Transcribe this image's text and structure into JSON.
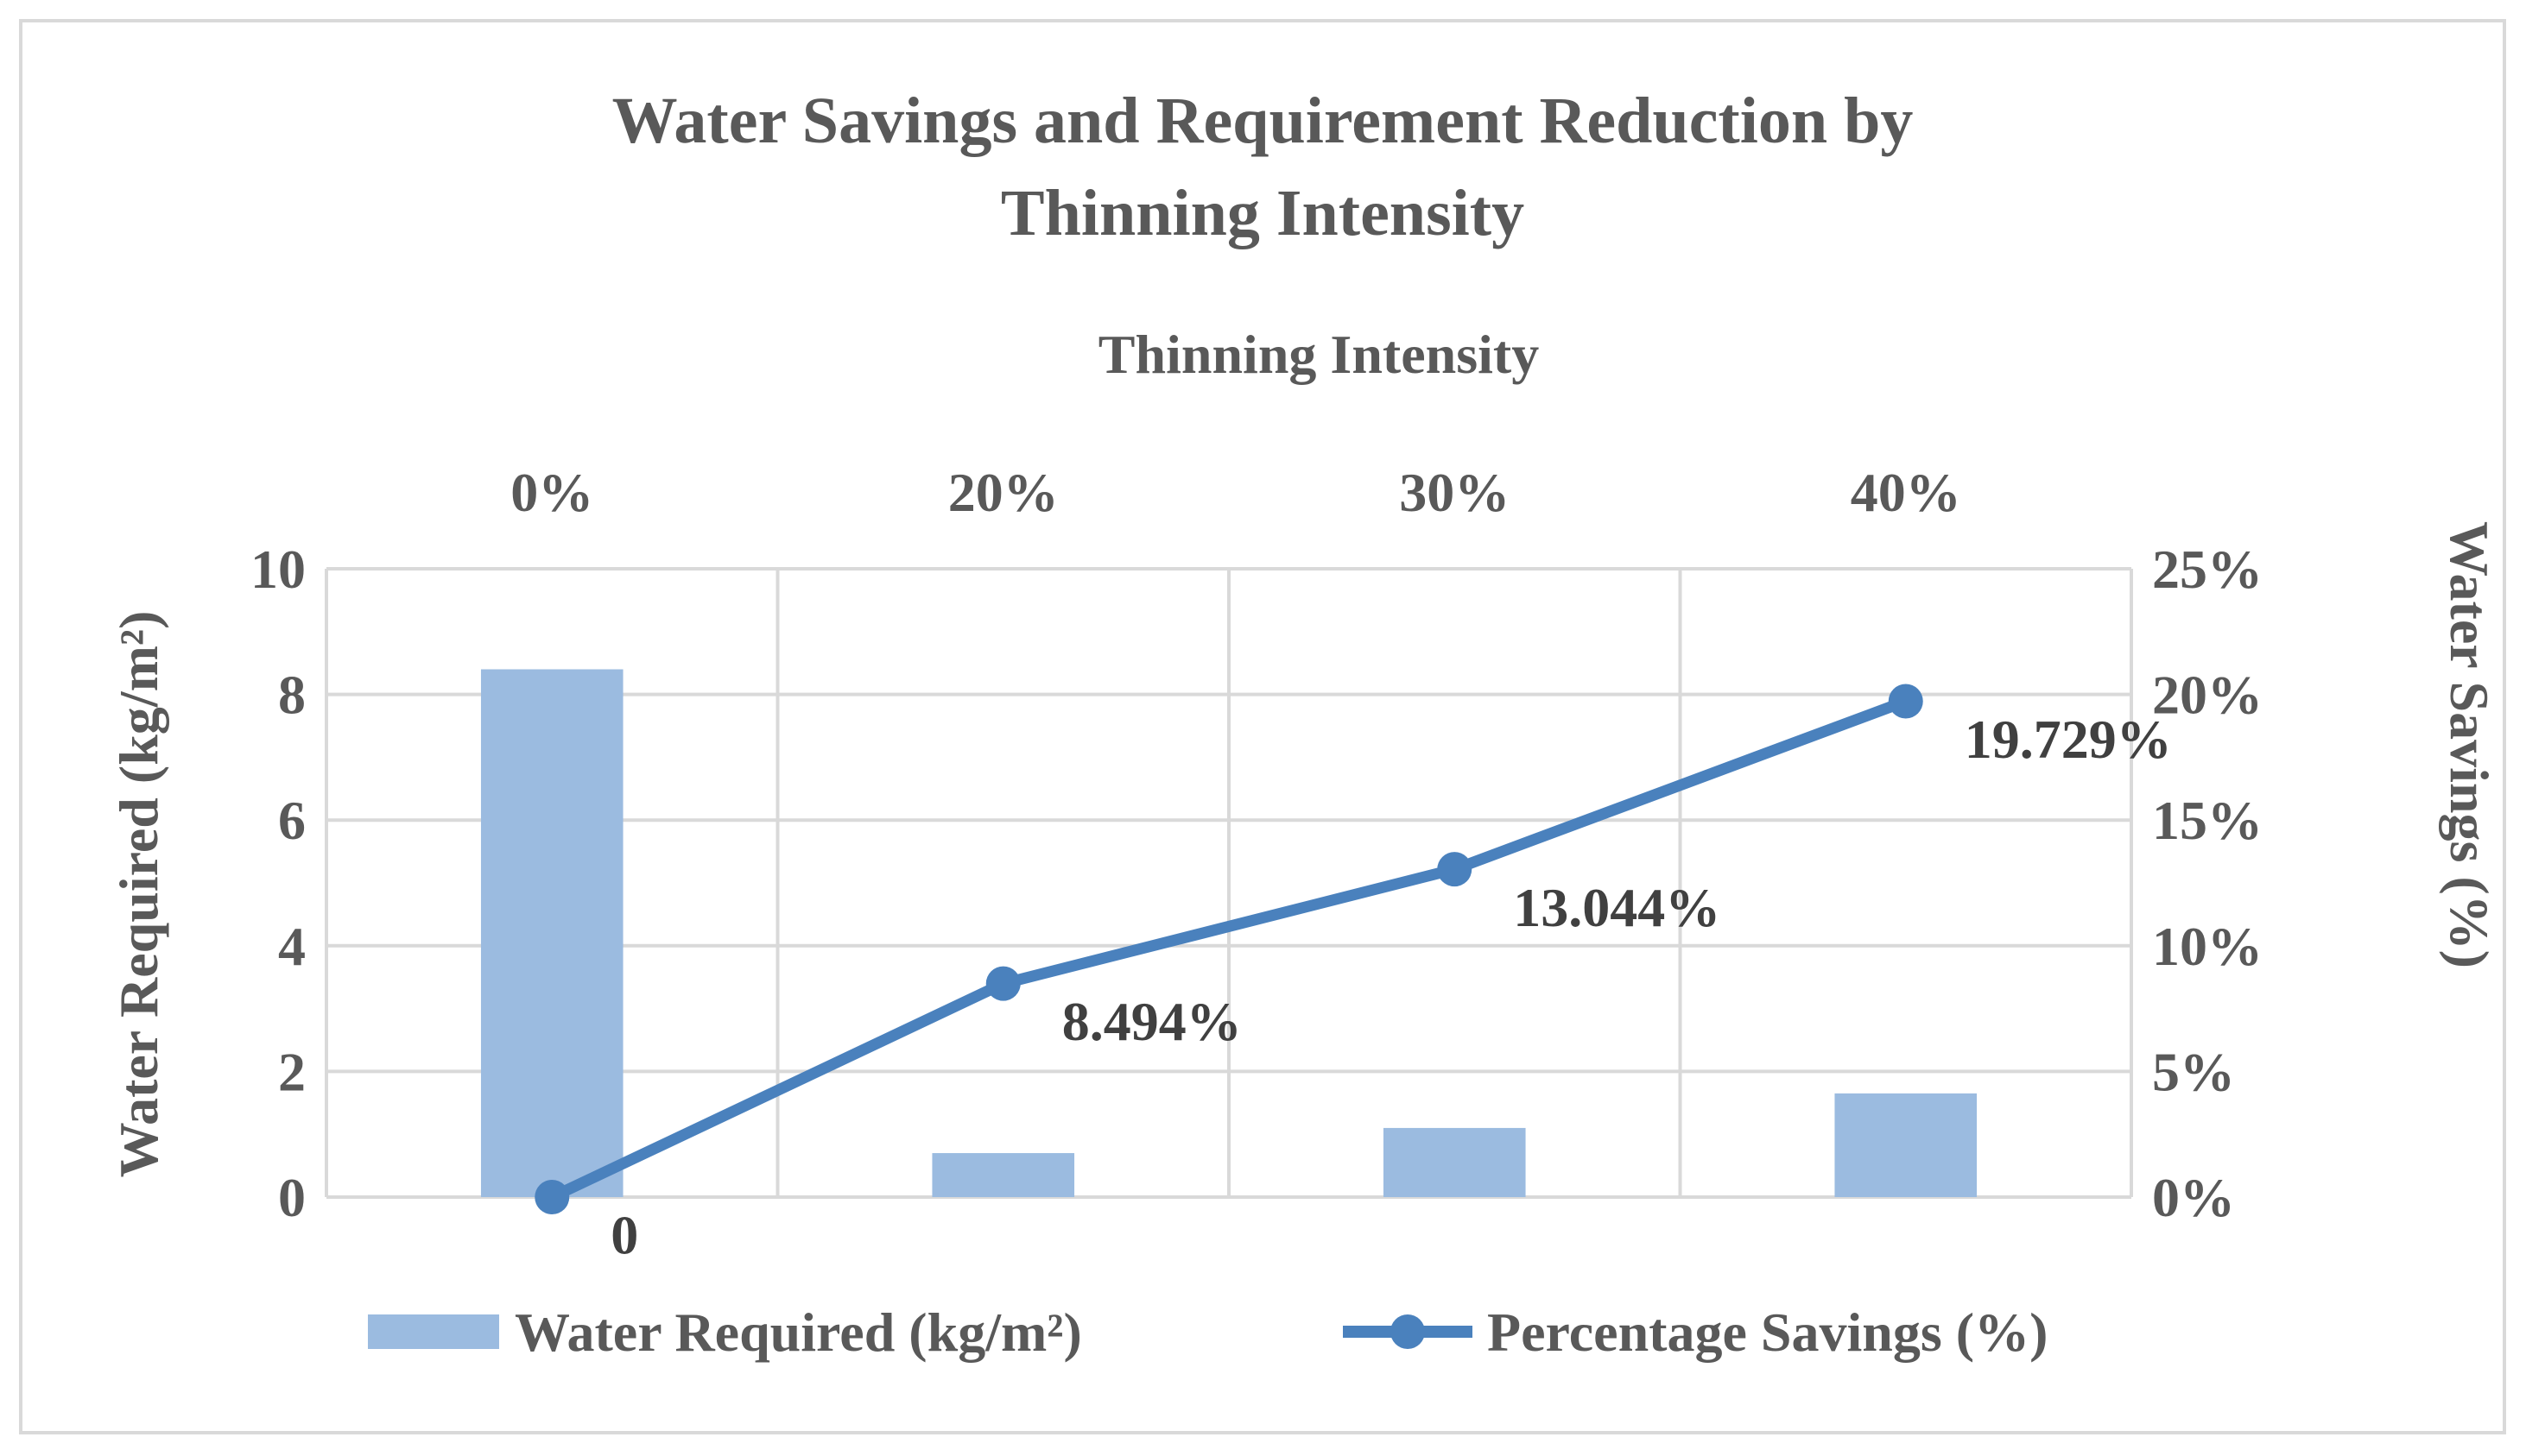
{
  "chart_data": {
    "type": "bar+line",
    "title_lines": [
      "Water Savings and Requirement Reduction by",
      "Thinning Intensity"
    ],
    "xlabel": "Thinning Intensity",
    "y_left_label": "Water Required (kg/m²)",
    "y_right_label": "Water Savings (%)",
    "categories": [
      "0%",
      "20%",
      "30%",
      "40%"
    ],
    "y_left_ticks": [
      "0",
      "2",
      "4",
      "6",
      "8",
      "10"
    ],
    "y_right_ticks": [
      "0%",
      "5%",
      "10%",
      "15%",
      "20%",
      "25%"
    ],
    "y_left_range": [
      0,
      10
    ],
    "y_right_range": [
      0,
      25
    ],
    "x_axis_position": "top",
    "grid": true,
    "legend_position": "bottom",
    "series": [
      {
        "name": "Water Required (kg/m²)",
        "type": "bar",
        "axis": "left",
        "color": "#9bbbe0",
        "values": [
          8.4,
          0.7,
          1.1,
          1.65
        ]
      },
      {
        "name": "Percentage Savings (%)",
        "type": "line",
        "axis": "right",
        "color": "#4a81bd",
        "values": [
          0,
          8.494,
          13.044,
          19.729
        ],
        "data_labels": [
          "0",
          "8.494%",
          "13.044%",
          "19.729%"
        ]
      }
    ]
  }
}
